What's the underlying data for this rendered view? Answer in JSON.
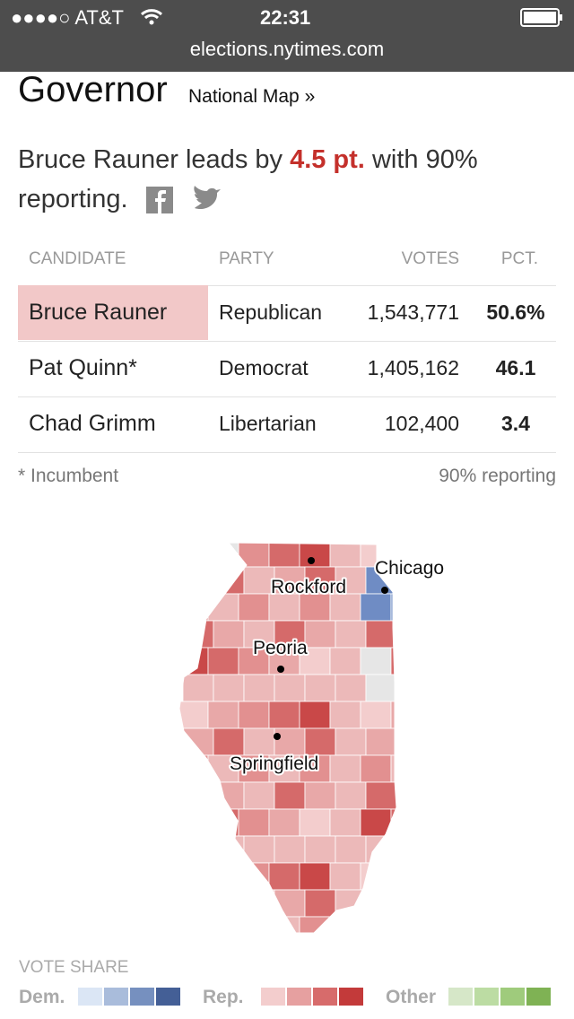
{
  "status_bar": {
    "carrier": "●●●●○ AT&T",
    "time": "22:31",
    "url": "elections.nytimes.com"
  },
  "header": {
    "title": "Governor",
    "link": "National Map »"
  },
  "summary": {
    "before": "Bruce Rauner leads by",
    "margin": "4.5 pt.",
    "after": "with 90% reporting."
  },
  "table": {
    "columns": [
      "CANDIDATE",
      "PARTY",
      "VOTES",
      "PCT."
    ],
    "rows": [
      [
        "Bruce Rauner",
        "Republican",
        "1,543,771",
        "50.6%"
      ],
      [
        "Pat Quinn*",
        "Democrat",
        "1,405,162",
        "46.1"
      ],
      [
        "Chad Grimm",
        "Libertarian",
        "102,400",
        "3.4"
      ]
    ]
  },
  "footnote": {
    "note": "* Incumbent",
    "reporting": "90% reporting"
  },
  "map": {
    "labels": [
      "Chicago",
      "Rockford",
      "Peoria",
      "Springfield"
    ]
  },
  "legend": {
    "title": "VOTE SHARE",
    "groups": [
      "Dem.",
      "Rep.",
      "Other"
    ]
  }
}
